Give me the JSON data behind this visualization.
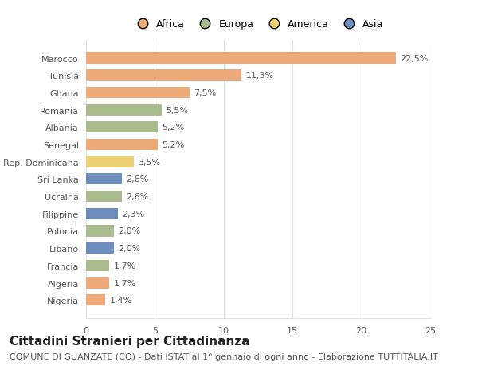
{
  "countries": [
    "Nigeria",
    "Algeria",
    "Francia",
    "Libano",
    "Polonia",
    "Filippine",
    "Ucraina",
    "Sri Lanka",
    "Rep. Dominicana",
    "Senegal",
    "Albania",
    "Romania",
    "Ghana",
    "Tunisia",
    "Marocco"
  ],
  "values": [
    1.4,
    1.7,
    1.7,
    2.0,
    2.0,
    2.3,
    2.6,
    2.6,
    3.5,
    5.2,
    5.2,
    5.5,
    7.5,
    11.3,
    22.5
  ],
  "labels": [
    "1,4%",
    "1,7%",
    "1,7%",
    "2,0%",
    "2,0%",
    "2,3%",
    "2,6%",
    "2,6%",
    "3,5%",
    "5,2%",
    "5,2%",
    "5,5%",
    "7,5%",
    "11,3%",
    "22,5%"
  ],
  "continents": [
    "Africa",
    "Africa",
    "Europa",
    "Asia",
    "Europa",
    "Asia",
    "Europa",
    "Asia",
    "America",
    "Africa",
    "Europa",
    "Europa",
    "Africa",
    "Africa",
    "Africa"
  ],
  "colors": {
    "Africa": "#EDAA78",
    "Europa": "#AABB8E",
    "America": "#EDD070",
    "Asia": "#6E8FBD"
  },
  "legend_order": [
    "Africa",
    "Europa",
    "America",
    "Asia"
  ],
  "legend_colors": [
    "#EDAA78",
    "#AABB8E",
    "#EDD070",
    "#6E8FBD"
  ],
  "xlim": [
    0,
    25
  ],
  "xticks": [
    0,
    5,
    10,
    15,
    20,
    25
  ],
  "background_color": "#ffffff",
  "title": "Cittadini Stranieri per Cittadinanza",
  "subtitle": "COMUNE DI GUANZATE (CO) - Dati ISTAT al 1° gennaio di ogni anno - Elaborazione TUTTITALIA.IT",
  "bar_height": 0.65,
  "grid_color": "#e0e0e0",
  "title_fontsize": 11,
  "subtitle_fontsize": 8,
  "label_fontsize": 8,
  "tick_fontsize": 8,
  "legend_fontsize": 9
}
